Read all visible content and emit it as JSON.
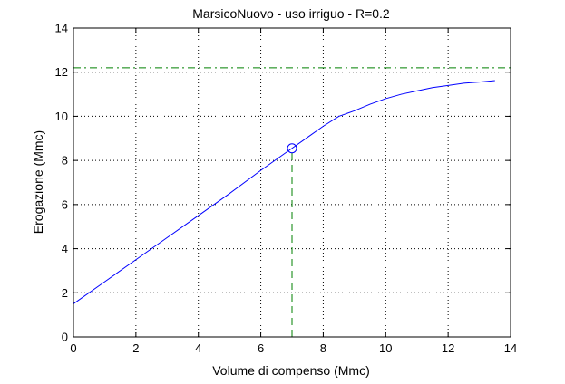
{
  "chart_data": {
    "type": "line",
    "title": "MarsicoNuovo  -  uso irriguo  -   R=0.2",
    "xlabel": "Volume di compenso (Mmc)",
    "ylabel": "Erogazione (Mmc)",
    "xlim": [
      0,
      14
    ],
    "ylim": [
      0,
      14
    ],
    "xticks": [
      0,
      2,
      4,
      6,
      8,
      10,
      12,
      14
    ],
    "yticks": [
      0,
      2,
      4,
      6,
      8,
      10,
      12,
      14
    ],
    "grid": true,
    "legend": "none",
    "colors": {
      "curve": "#0000ff",
      "reference": "#008000",
      "axes": "#000000",
      "grid": "#000000"
    },
    "series": [
      {
        "style": "solid",
        "color": "#0000ff",
        "x": [
          0,
          1,
          2,
          3,
          4,
          5,
          6,
          7,
          7.5,
          8,
          8.5,
          9,
          9.5,
          10,
          10.5,
          11,
          11.5,
          12,
          12.5,
          13,
          13.5
        ],
        "y": [
          1.5,
          2.5,
          3.5,
          4.5,
          5.5,
          6.5,
          7.55,
          8.55,
          9.05,
          9.55,
          10.0,
          10.25,
          10.55,
          10.8,
          11.0,
          11.15,
          11.3,
          11.4,
          11.5,
          11.55,
          11.62
        ]
      }
    ],
    "reference_lines": [
      {
        "orientation": "horizontal",
        "y": 12.2,
        "x": [
          0,
          14
        ],
        "style": "dash-dot",
        "color": "#008000"
      },
      {
        "orientation": "vertical",
        "x": 7.0,
        "y": [
          0,
          8.55
        ],
        "style": "dashed",
        "color": "#008000"
      }
    ],
    "markers": [
      {
        "shape": "circle",
        "x": 7.0,
        "y": 8.55,
        "color": "#0000ff"
      }
    ]
  }
}
